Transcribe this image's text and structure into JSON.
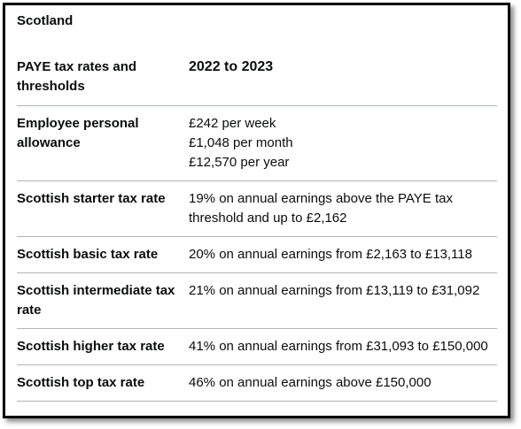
{
  "caption": "Scotland",
  "header": {
    "col1": "PAYE tax rates and thresholds",
    "col2": "2022 to 2023"
  },
  "rows": [
    {
      "label": "Employee personal allowance",
      "lines": [
        "£242 per week",
        "£1,048 per month",
        "£12,570 per year"
      ]
    },
    {
      "label": "Scottish starter tax rate",
      "lines": [
        "19% on annual earnings above the PAYE tax threshold and up to £2,162"
      ]
    },
    {
      "label": "Scottish basic tax rate",
      "lines": [
        "20% on annual earnings from £2,163 to £13,118"
      ]
    },
    {
      "label": "Scottish intermediate tax rate",
      "lines": [
        "21% on annual earnings from £13,119 to £31,092"
      ]
    },
    {
      "label": "Scottish higher tax rate",
      "lines": [
        "41% on annual earnings from £31,093 to £150,000"
      ]
    },
    {
      "label": "Scottish top tax rate",
      "lines": [
        "46% on annual earnings above £150,000"
      ]
    }
  ]
}
